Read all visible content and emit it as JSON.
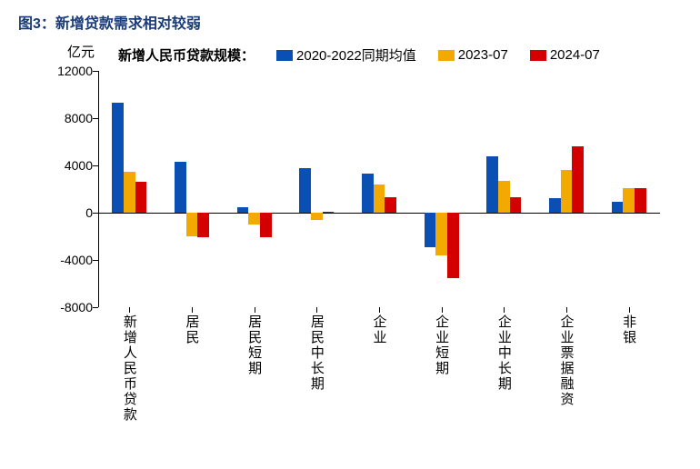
{
  "caption": "图3：新增贷款需求相对较弱",
  "chart": {
    "type": "bar",
    "ylabel": "亿元",
    "legend_title": "新增人民币贷款规模：",
    "series": [
      {
        "name": "2020-2022同期均值",
        "color": "#0a4fb3"
      },
      {
        "name": "2023-07",
        "color": "#f2a900"
      },
      {
        "name": "2024-07",
        "color": "#d40000"
      }
    ],
    "categories": [
      "新增人民币贷款",
      "居民",
      "居民短期",
      "居民中长期",
      "企业",
      "企业短期",
      "企业中长期",
      "企业票据融资",
      "非银"
    ],
    "values": [
      [
        9300,
        4300,
        500,
        3800,
        3300,
        -2900,
        4800,
        1200,
        900
      ],
      [
        3450,
        -2000,
        -1000,
        -600,
        2400,
        -3600,
        2700,
        3600,
        2100
      ],
      [
        2600,
        -2100,
        -2100,
        100,
        1300,
        -5500,
        1300,
        5600,
        2100
      ]
    ],
    "ylim": [
      -8000,
      12000
    ],
    "yticks": [
      -8000,
      -4000,
      0,
      4000,
      8000,
      12000
    ],
    "bar_group_width": 0.55,
    "background_color": "#ffffff",
    "axis_color": "#000000",
    "caption_color": "#1a3b7a",
    "title_fontsize": 16,
    "label_fontsize": 15,
    "tick_fontsize": 14
  }
}
